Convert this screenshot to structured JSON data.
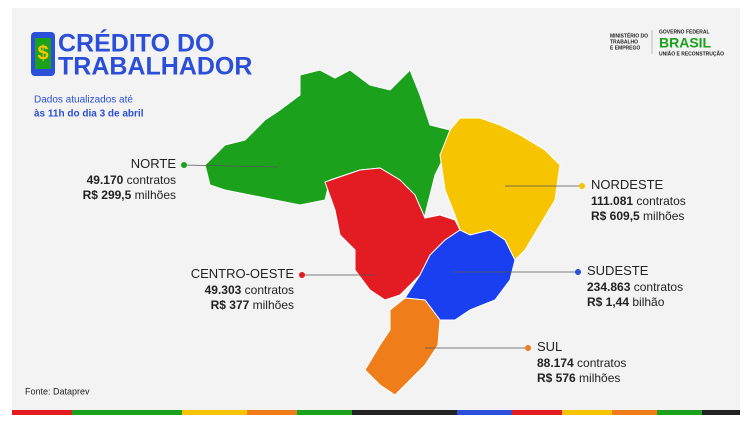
{
  "header": {
    "title_line1": "CRÉDITO DO",
    "title_line2": "TRABALHADOR",
    "subtitle_line1": "Dados atualizados até",
    "subtitle_line2": "às 11h do dia 3 de abril"
  },
  "logos": {
    "ministry_line1": "MINISTÉRIO DO",
    "ministry_line2": "TRABALHO",
    "ministry_line3": "E EMPREGO",
    "gov": "GOVERNO FEDERAL",
    "brasil": "BRASIL",
    "motto": "UNIÃO E RECONSTRUÇÃO"
  },
  "regions": [
    {
      "name": "NORTE",
      "count": "49.170",
      "count_unit": "contratos",
      "amount": "R$ 299,5",
      "amount_unit": "milhões"
    },
    {
      "name": "NORDESTE",
      "count": "111.081",
      "count_unit": "contratos",
      "amount": "R$ 609,5",
      "amount_unit": "milhões"
    },
    {
      "name": "CENTRO-OESTE",
      "count": "49.303",
      "count_unit": "contratos",
      "amount": "R$ 377",
      "amount_unit": "milhões"
    },
    {
      "name": "SUDESTE",
      "count": "234.863",
      "count_unit": "contratos",
      "amount": "R$ 1,44",
      "amount_unit": "bilhão"
    },
    {
      "name": "SUL",
      "count": "88.174",
      "count_unit": "contratos",
      "amount": "R$ 576",
      "amount_unit": "milhões"
    }
  ],
  "source": "Fonte: Dataprev"
}
